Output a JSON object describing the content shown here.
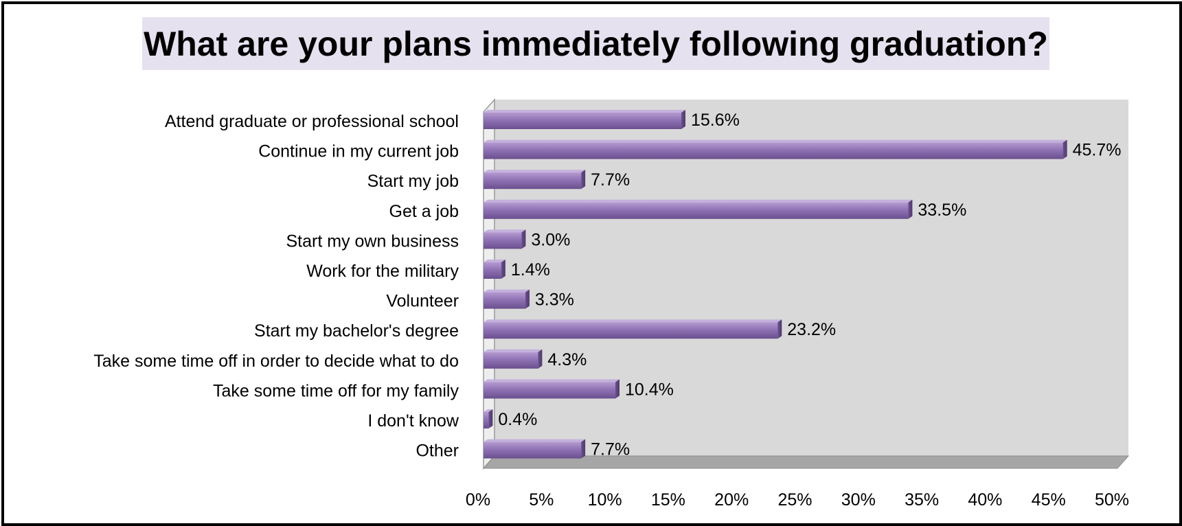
{
  "chart_data": {
    "type": "bar",
    "orientation": "horizontal",
    "title": "What are your plans immediately following graduation?",
    "categories": [
      "Attend graduate or professional school",
      "Continue in my current job",
      "Start my job",
      "Get a job",
      "Start my own business",
      "Work for the military",
      "Volunteer",
      "Start my bachelor's degree",
      "Take some time off in order to decide what to do",
      "Take some time off for my family",
      "I don't know",
      "Other"
    ],
    "values": [
      15.6,
      45.7,
      7.7,
      33.5,
      3.0,
      1.4,
      3.3,
      23.2,
      4.3,
      10.4,
      0.4,
      7.7
    ],
    "value_labels": [
      "15.6%",
      "45.7%",
      "7.7%",
      "33.5%",
      "3.0%",
      "1.4%",
      "3.3%",
      "23.2%",
      "4.3%",
      "10.4%",
      "0.4%",
      "7.7%"
    ],
    "xlim": [
      0,
      50
    ],
    "x_ticks": [
      0,
      5,
      10,
      15,
      20,
      25,
      30,
      35,
      40,
      45,
      50
    ],
    "x_tick_labels": [
      "0%",
      "5%",
      "10%",
      "15%",
      "20%",
      "25%",
      "30%",
      "35%",
      "40%",
      "45%",
      "50%"
    ],
    "xlabel": "",
    "ylabel": "",
    "grid": false,
    "legend": "none",
    "bar_color": "#8064a2",
    "plot_background": "#d9d9d9",
    "title_background": "#e6e1ef"
  }
}
